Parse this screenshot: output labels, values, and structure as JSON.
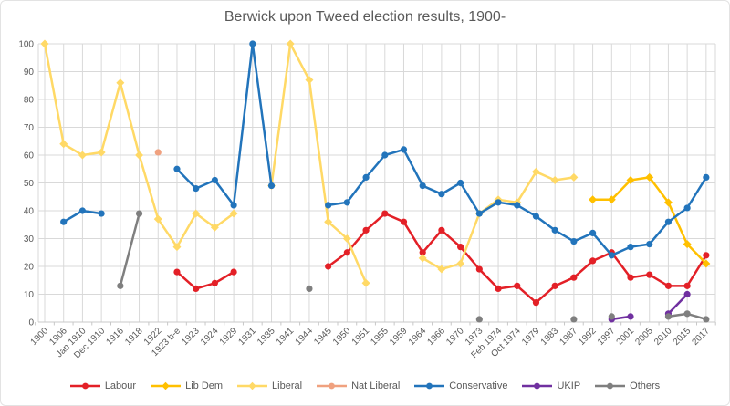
{
  "chart_data": {
    "type": "line",
    "title": "Berwick upon Tweed election results, 1900-",
    "xlabel": "",
    "ylabel": "",
    "ylim": [
      0,
      100
    ],
    "ytick_step": 10,
    "grid": true,
    "legend_position": "bottom",
    "text_color": "#595959",
    "grid_color": "#d9d9d9",
    "axis_color": "#c8c8c8",
    "y_ticks": [
      "0",
      "10",
      "20",
      "30",
      "40",
      "50",
      "60",
      "70",
      "80",
      "90",
      "100"
    ],
    "categories": [
      "1900",
      "1906",
      "Jan 1910",
      "Dec 1910",
      "1916",
      "1918",
      "1922",
      "1923 b-e",
      "1923",
      "1924",
      "1929",
      "1931",
      "1935",
      "1941",
      "1944",
      "1945",
      "1950",
      "1951",
      "1955",
      "1959",
      "1964",
      "1966",
      "1970",
      "1973",
      "Feb 1974",
      "Oct 1974",
      "1979",
      "1983",
      "1987",
      "1992",
      "1997",
      "2001",
      "2005",
      "2010",
      "2015",
      "2017"
    ],
    "series": [
      {
        "name": "Labour",
        "color": "#e32027",
        "marker": "circle",
        "values": [
          null,
          null,
          null,
          null,
          null,
          null,
          null,
          18,
          12,
          14,
          18,
          null,
          null,
          null,
          null,
          20,
          25,
          33,
          39,
          36,
          25,
          33,
          27,
          19,
          12,
          13,
          7,
          13,
          16,
          22,
          25,
          16,
          17,
          13,
          13,
          24
        ]
      },
      {
        "name": "Lib Dem",
        "color": "#ffc000",
        "marker": "diamond",
        "values": [
          null,
          null,
          null,
          null,
          null,
          null,
          null,
          null,
          null,
          null,
          null,
          null,
          null,
          null,
          null,
          null,
          null,
          null,
          null,
          null,
          null,
          null,
          null,
          null,
          null,
          null,
          null,
          null,
          null,
          44,
          44,
          51,
          52,
          43,
          28,
          21
        ]
      },
      {
        "name": "Liberal",
        "color": "#ffd966",
        "marker": "diamond",
        "values": [
          100,
          64,
          60,
          61,
          86,
          60,
          37,
          27,
          39,
          34,
          39,
          null,
          49,
          100,
          87,
          36,
          30,
          14,
          null,
          null,
          23,
          19,
          21,
          39,
          44,
          43,
          54,
          51,
          52,
          null,
          null,
          null,
          null,
          null,
          null,
          null
        ]
      },
      {
        "name": "Nat Liberal",
        "color": "#f0a17f",
        "marker": "circle",
        "values": [
          null,
          null,
          null,
          null,
          null,
          null,
          61,
          null,
          null,
          null,
          null,
          null,
          null,
          null,
          null,
          null,
          null,
          null,
          null,
          null,
          null,
          null,
          null,
          null,
          null,
          null,
          null,
          null,
          null,
          null,
          null,
          null,
          null,
          null,
          null,
          null
        ]
      },
      {
        "name": "Conservative",
        "color": "#2274bb",
        "marker": "circle",
        "values": [
          null,
          36,
          40,
          39,
          null,
          null,
          null,
          55,
          48,
          51,
          42,
          100,
          49,
          null,
          null,
          42,
          43,
          52,
          60,
          62,
          49,
          46,
          50,
          39,
          43,
          42,
          38,
          33,
          29,
          32,
          24,
          27,
          28,
          36,
          41,
          52
        ]
      },
      {
        "name": "UKIP",
        "color": "#7030a0",
        "marker": "circle",
        "values": [
          null,
          null,
          null,
          null,
          null,
          null,
          null,
          null,
          null,
          null,
          null,
          null,
          null,
          null,
          null,
          null,
          null,
          null,
          null,
          null,
          null,
          null,
          null,
          null,
          null,
          null,
          null,
          null,
          null,
          null,
          1,
          2,
          null,
          3,
          10,
          null
        ]
      },
      {
        "name": "Others",
        "color": "#7f7f7f",
        "marker": "circle",
        "values": [
          null,
          null,
          null,
          null,
          13,
          39,
          null,
          null,
          null,
          null,
          null,
          null,
          null,
          null,
          12,
          null,
          null,
          null,
          null,
          null,
          null,
          null,
          null,
          1,
          null,
          null,
          null,
          null,
          1,
          null,
          2,
          null,
          null,
          2,
          3,
          1
        ]
      }
    ]
  }
}
